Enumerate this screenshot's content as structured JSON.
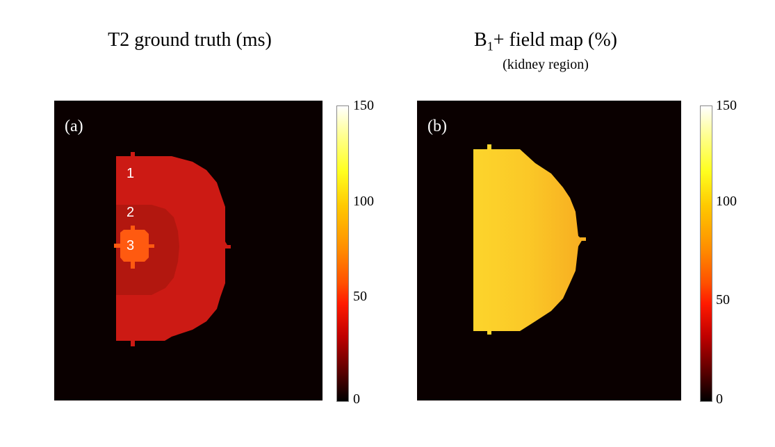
{
  "panel_a": {
    "title": "T2 ground truth (ms)",
    "label": "(a)",
    "regions": [
      "1",
      "2",
      "3"
    ],
    "colorbar_ticks": [
      "150",
      "100",
      "50",
      "0"
    ]
  },
  "panel_b": {
    "title_main": "B",
    "title_sub": "1",
    "title_rest": "+ field map (%)",
    "subtitle": "(kidney region)",
    "label": "(b)",
    "colorbar_ticks": [
      "150",
      "100",
      "50",
      "0"
    ]
  },
  "colormap": "hot",
  "colorbar_range": [
    0,
    150
  ],
  "colors": {
    "background": "#0a0000",
    "region1": "#cc1a14",
    "region2": "#b2170f",
    "region3": "#ff5a10",
    "b1_left": "#fcd22a",
    "b1_right": "#f9b322"
  }
}
